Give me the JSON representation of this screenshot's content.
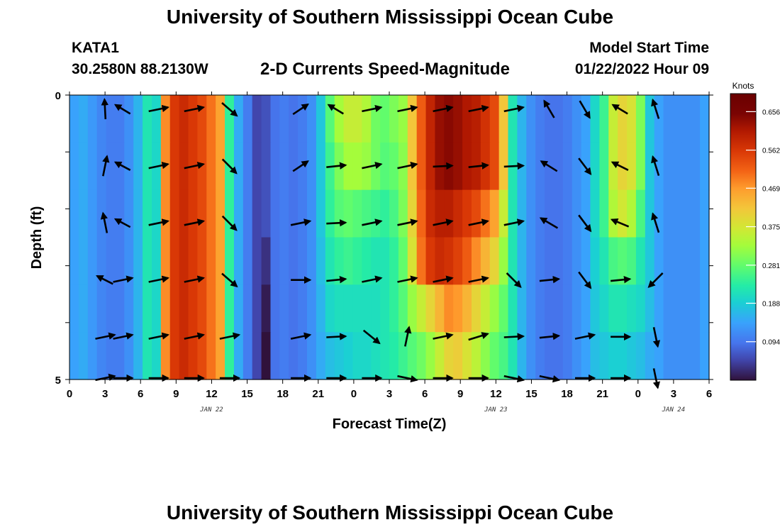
{
  "header": {
    "title": "University of Southern Mississippi Ocean Cube",
    "station": "KATA1",
    "coords": "30.2580N  88.2130W",
    "subtitle": "2-D Currents Speed-Magnitude",
    "model_start_label": "Model Start Time",
    "model_start_value": "01/22/2022 Hour 09"
  },
  "footer": {
    "title": "University of Southern Mississippi Ocean Cube"
  },
  "chart_data": {
    "type": "heatmap",
    "title": "2-D Currents Speed-Magnitude",
    "xlabel": "Forecast Time(Z)",
    "ylabel": "Depth (ft)",
    "x_range_hours": [
      0,
      54
    ],
    "x_ticks": [
      {
        "h": 0,
        "label": "0"
      },
      {
        "h": 3,
        "label": "3"
      },
      {
        "h": 6,
        "label": "6"
      },
      {
        "h": 9,
        "label": "9"
      },
      {
        "h": 12,
        "label": "12"
      },
      {
        "h": 15,
        "label": "15"
      },
      {
        "h": 18,
        "label": "18"
      },
      {
        "h": 21,
        "label": "21"
      },
      {
        "h": 24,
        "label": "0"
      },
      {
        "h": 27,
        "label": "3"
      },
      {
        "h": 30,
        "label": "6"
      },
      {
        "h": 33,
        "label": "9"
      },
      {
        "h": 36,
        "label": "12"
      },
      {
        "h": 39,
        "label": "15"
      },
      {
        "h": 42,
        "label": "18"
      },
      {
        "h": 45,
        "label": "21"
      },
      {
        "h": 48,
        "label": "0"
      },
      {
        "h": 51,
        "label": "3"
      },
      {
        "h": 54,
        "label": "6"
      }
    ],
    "date_labels": [
      {
        "h": 12,
        "label": "JAN 22"
      },
      {
        "h": 36,
        "label": "JAN 23"
      },
      {
        "h": 51,
        "label": "JAN 24"
      }
    ],
    "y_range_ft": [
      0,
      5
    ],
    "y_ticks": [
      {
        "v": 0,
        "label": "0"
      },
      {
        "v": 5,
        "label": "5"
      }
    ],
    "colorbar": {
      "units": "Knots",
      "min": 0.0,
      "max": 0.7,
      "ticks": [
        "0.094",
        "0.188",
        "0.281",
        "0.375",
        "0.469",
        "0.562",
        "0.656"
      ]
    },
    "depth_bands_ft": [
      0,
      1,
      2,
      3,
      4,
      5
    ],
    "speed_knots": [
      [
        0.14,
        0.15,
        0.13,
        0.11,
        0.1,
        0.1,
        0.12,
        0.16,
        0.22,
        0.2,
        0.48,
        0.56,
        0.58,
        0.56,
        0.54,
        0.5,
        0.46,
        0.24,
        0.15,
        0.1,
        0.05,
        0.06,
        0.09,
        0.1,
        0.09,
        0.1,
        0.12,
        0.18,
        0.27,
        0.33,
        0.36,
        0.36,
        0.34,
        0.29,
        0.28,
        0.3,
        0.32,
        0.42,
        0.52,
        0.59,
        0.63,
        0.64,
        0.63,
        0.61,
        0.6,
        0.57,
        0.54,
        0.42,
        0.22,
        0.16,
        0.12,
        0.1,
        0.09,
        0.09,
        0.1,
        0.12,
        0.14,
        0.2,
        0.25,
        0.36,
        0.4,
        0.38,
        0.3,
        0.18,
        0.14,
        0.12,
        0.12,
        0.12,
        0.12,
        0.14
      ],
      [
        0.14,
        0.15,
        0.13,
        0.11,
        0.1,
        0.1,
        0.12,
        0.16,
        0.22,
        0.2,
        0.48,
        0.56,
        0.58,
        0.56,
        0.54,
        0.5,
        0.46,
        0.24,
        0.15,
        0.1,
        0.05,
        0.06,
        0.09,
        0.1,
        0.09,
        0.1,
        0.12,
        0.18,
        0.25,
        0.3,
        0.33,
        0.33,
        0.32,
        0.29,
        0.27,
        0.28,
        0.31,
        0.42,
        0.52,
        0.59,
        0.63,
        0.64,
        0.63,
        0.61,
        0.6,
        0.57,
        0.54,
        0.42,
        0.22,
        0.16,
        0.12,
        0.1,
        0.09,
        0.09,
        0.1,
        0.12,
        0.14,
        0.2,
        0.25,
        0.36,
        0.4,
        0.38,
        0.3,
        0.18,
        0.14,
        0.12,
        0.12,
        0.12,
        0.12,
        0.14
      ],
      [
        0.14,
        0.15,
        0.13,
        0.11,
        0.1,
        0.1,
        0.12,
        0.16,
        0.22,
        0.2,
        0.48,
        0.56,
        0.58,
        0.56,
        0.54,
        0.5,
        0.46,
        0.24,
        0.15,
        0.1,
        0.05,
        0.06,
        0.09,
        0.1,
        0.09,
        0.1,
        0.12,
        0.18,
        0.24,
        0.27,
        0.28,
        0.27,
        0.26,
        0.25,
        0.24,
        0.26,
        0.3,
        0.4,
        0.51,
        0.58,
        0.6,
        0.6,
        0.58,
        0.56,
        0.54,
        0.5,
        0.46,
        0.36,
        0.22,
        0.16,
        0.12,
        0.1,
        0.09,
        0.09,
        0.1,
        0.12,
        0.14,
        0.2,
        0.25,
        0.34,
        0.37,
        0.34,
        0.26,
        0.18,
        0.14,
        0.12,
        0.12,
        0.12,
        0.12,
        0.14
      ],
      [
        0.14,
        0.15,
        0.13,
        0.11,
        0.1,
        0.1,
        0.12,
        0.16,
        0.22,
        0.2,
        0.48,
        0.56,
        0.58,
        0.56,
        0.54,
        0.5,
        0.46,
        0.24,
        0.15,
        0.1,
        0.05,
        0.03,
        0.09,
        0.1,
        0.09,
        0.1,
        0.12,
        0.17,
        0.22,
        0.24,
        0.25,
        0.24,
        0.23,
        0.22,
        0.22,
        0.24,
        0.28,
        0.38,
        0.5,
        0.56,
        0.58,
        0.57,
        0.55,
        0.52,
        0.48,
        0.44,
        0.4,
        0.32,
        0.22,
        0.16,
        0.12,
        0.1,
        0.09,
        0.09,
        0.1,
        0.12,
        0.14,
        0.19,
        0.22,
        0.26,
        0.27,
        0.26,
        0.22,
        0.18,
        0.14,
        0.12,
        0.12,
        0.12,
        0.12,
        0.14
      ],
      [
        0.14,
        0.15,
        0.13,
        0.11,
        0.1,
        0.1,
        0.12,
        0.16,
        0.22,
        0.2,
        0.48,
        0.56,
        0.58,
        0.56,
        0.54,
        0.5,
        0.46,
        0.24,
        0.15,
        0.1,
        0.05,
        0.01,
        0.09,
        0.1,
        0.09,
        0.1,
        0.12,
        0.16,
        0.2,
        0.21,
        0.21,
        0.21,
        0.21,
        0.21,
        0.22,
        0.24,
        0.27,
        0.32,
        0.36,
        0.4,
        0.44,
        0.48,
        0.47,
        0.44,
        0.4,
        0.36,
        0.32,
        0.28,
        0.22,
        0.16,
        0.12,
        0.1,
        0.09,
        0.09,
        0.1,
        0.12,
        0.14,
        0.18,
        0.2,
        0.22,
        0.22,
        0.21,
        0.2,
        0.17,
        0.14,
        0.12,
        0.12,
        0.12,
        0.12,
        0.14
      ],
      [
        0.14,
        0.15,
        0.13,
        0.11,
        0.1,
        0.1,
        0.12,
        0.16,
        0.22,
        0.2,
        0.48,
        0.56,
        0.58,
        0.56,
        0.54,
        0.5,
        0.46,
        0.24,
        0.15,
        0.1,
        0.05,
        0.0,
        0.09,
        0.1,
        0.09,
        0.1,
        0.12,
        0.15,
        0.17,
        0.18,
        0.19,
        0.2,
        0.2,
        0.21,
        0.22,
        0.23,
        0.25,
        0.27,
        0.29,
        0.32,
        0.36,
        0.4,
        0.41,
        0.38,
        0.35,
        0.31,
        0.28,
        0.26,
        0.22,
        0.16,
        0.12,
        0.1,
        0.09,
        0.09,
        0.1,
        0.12,
        0.14,
        0.17,
        0.18,
        0.19,
        0.19,
        0.18,
        0.17,
        0.15,
        0.14,
        0.12,
        0.12,
        0.12,
        0.12,
        0.14
      ]
    ],
    "vector_depths_ft": [
      0.25,
      1.25,
      2.25,
      3.25,
      4.25,
      5.0
    ],
    "vector_times_h": [
      3,
      4.5,
      7.5,
      10.5,
      13.5,
      19.5,
      22.5,
      25.5,
      28.5,
      31.5,
      34.5,
      37.5,
      40.5,
      43.5,
      46.5,
      49.5
    ],
    "vectors": [
      [
        [
          -0.05,
          -1
        ],
        [
          -0.75,
          -0.45
        ],
        [
          0.97,
          -0.2
        ],
        [
          0.97,
          -0.2
        ],
        [
          0.75,
          0.65
        ],
        [
          0.75,
          -0.5
        ],
        [
          -0.75,
          -0.45
        ],
        [
          0.97,
          -0.2
        ],
        [
          0.97,
          -0.2
        ],
        [
          0.97,
          -0.2
        ],
        [
          0.97,
          -0.2
        ],
        [
          0.97,
          -0.2
        ],
        [
          -0.5,
          -0.85
        ],
        [
          0.5,
          0.85
        ],
        [
          -0.75,
          -0.45
        ],
        [
          -0.3,
          -0.95
        ]
      ],
      [
        [
          0.2,
          -1
        ],
        [
          -0.75,
          -0.4
        ],
        [
          0.97,
          -0.2
        ],
        [
          0.97,
          -0.2
        ],
        [
          0.7,
          0.7
        ],
        [
          0.75,
          -0.5
        ],
        [
          0.97,
          -0.1
        ],
        [
          0.97,
          -0.2
        ],
        [
          0.97,
          -0.2
        ],
        [
          0.97,
          -0.05
        ],
        [
          0.97,
          -0.1
        ],
        [
          0.97,
          -0.05
        ],
        [
          -0.8,
          -0.5
        ],
        [
          0.6,
          0.8
        ],
        [
          -0.8,
          -0.4
        ],
        [
          -0.3,
          -0.95
        ]
      ],
      [
        [
          -0.2,
          -1
        ],
        [
          -0.75,
          -0.4
        ],
        [
          0.97,
          -0.2
        ],
        [
          0.97,
          -0.2
        ],
        [
          0.7,
          0.7
        ],
        [
          0.97,
          -0.2
        ],
        [
          0.97,
          -0.05
        ],
        [
          0.97,
          -0.2
        ],
        [
          0.97,
          -0.2
        ],
        [
          0.97,
          -0.2
        ],
        [
          0.97,
          -0.2
        ],
        [
          0.97,
          -0.2
        ],
        [
          -0.85,
          -0.5
        ],
        [
          0.6,
          0.8
        ],
        [
          -0.85,
          -0.35
        ],
        [
          -0.3,
          -0.95
        ]
      ],
      [
        [
          -0.8,
          -0.4
        ],
        [
          0.97,
          -0.2
        ],
        [
          0.97,
          -0.2
        ],
        [
          0.97,
          -0.2
        ],
        [
          0.75,
          0.65
        ],
        [
          0.97,
          0
        ],
        [
          0.97,
          -0.1
        ],
        [
          0.97,
          -0.2
        ],
        [
          0.97,
          -0.2
        ],
        [
          0.97,
          -0.2
        ],
        [
          0.97,
          -0.2
        ],
        [
          0.7,
          0.7
        ],
        [
          0.97,
          -0.1
        ],
        [
          0.6,
          0.8
        ],
        [
          0.97,
          -0.1
        ],
        [
          -0.7,
          0.7
        ]
      ],
      [
        [
          0.97,
          -0.2
        ],
        [
          0.97,
          -0.2
        ],
        [
          0.97,
          -0.2
        ],
        [
          0.97,
          -0.2
        ],
        [
          0.97,
          -0.2
        ],
        [
          0.97,
          -0.2
        ],
        [
          0.97,
          -0.05
        ],
        [
          0.8,
          0.65
        ],
        [
          0.2,
          -0.97
        ],
        [
          0.97,
          -0.2
        ],
        [
          0.97,
          -0.3
        ],
        [
          0.97,
          -0.05
        ],
        [
          0.97,
          -0.1
        ],
        [
          0.97,
          -0.2
        ],
        [
          0.97,
          0
        ],
        [
          0.2,
          0.97
        ]
      ],
      [
        [
          0.97,
          -0.2
        ],
        [
          0.97,
          0
        ],
        [
          0.97,
          0
        ],
        [
          0.97,
          0
        ],
        [
          0.97,
          0
        ],
        [
          0.97,
          0
        ],
        [
          0.97,
          0
        ],
        [
          0.97,
          0
        ],
        [
          0.97,
          0.2
        ],
        [
          0.97,
          0
        ],
        [
          0.97,
          0
        ],
        [
          0.97,
          0.2
        ],
        [
          0.97,
          0.2
        ],
        [
          0.97,
          0
        ],
        [
          0.97,
          0
        ],
        [
          0.2,
          0.97
        ]
      ]
    ]
  }
}
